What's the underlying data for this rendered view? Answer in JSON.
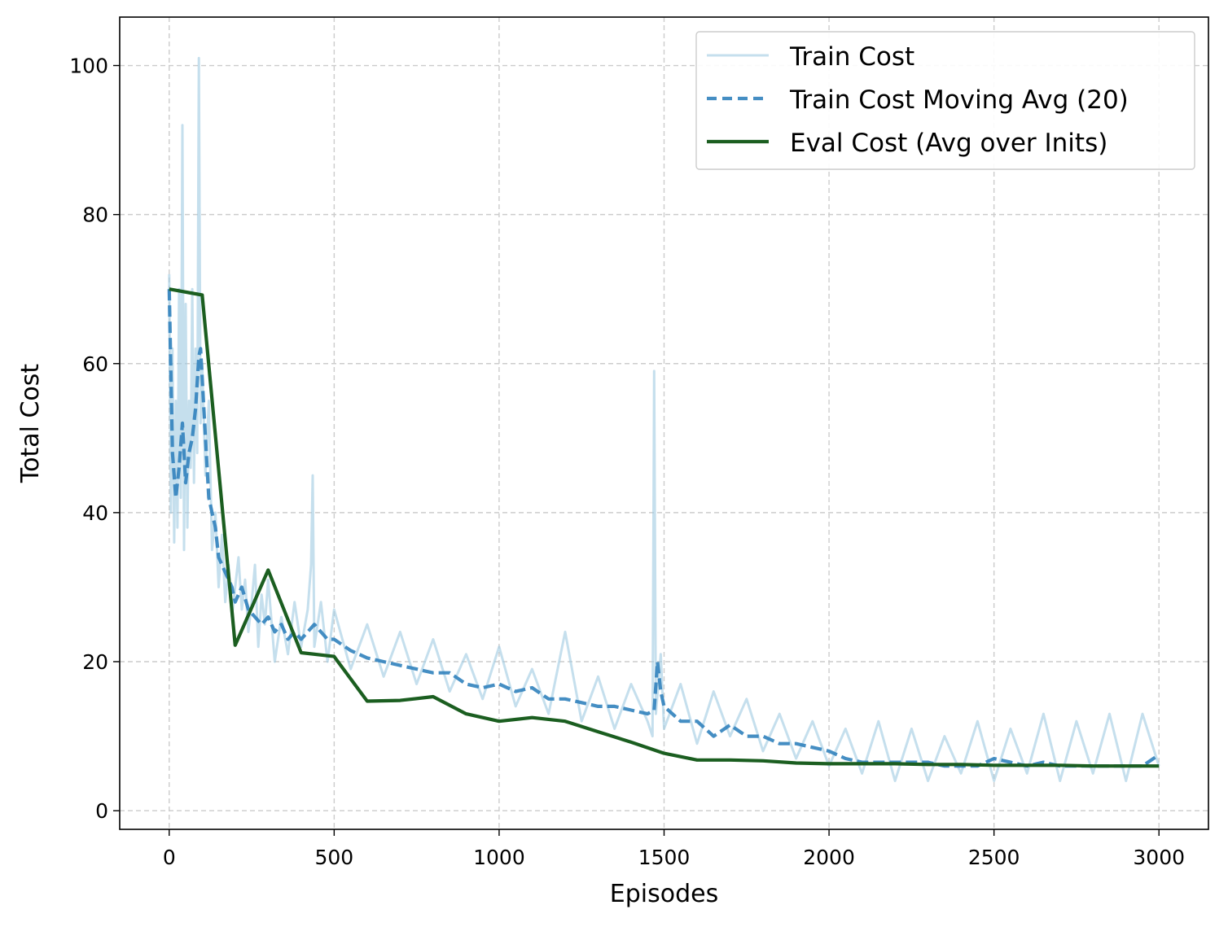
{
  "chart_data": {
    "type": "line",
    "title": "",
    "xlabel": "Episodes",
    "ylabel": "Total Cost",
    "xlim": [
      -150,
      3150
    ],
    "ylim": [
      -2.5,
      106.5
    ],
    "xticks": [
      0,
      500,
      1000,
      1500,
      2000,
      2500,
      3000
    ],
    "xtick_labels": [
      "0",
      "500",
      "1000",
      "1500",
      "2000",
      "2500",
      "3000"
    ],
    "yticks": [
      0,
      20,
      40,
      60,
      80,
      100
    ],
    "ytick_labels": [
      "0",
      "20",
      "40",
      "60",
      "80",
      "100"
    ],
    "grid": true,
    "grid_style": "dashed",
    "legend_position": "top-right",
    "series": [
      {
        "name": "Train Cost",
        "style": "solid-light",
        "color": "#9ecae1",
        "x": [
          0,
          5,
          10,
          15,
          20,
          25,
          30,
          35,
          40,
          45,
          50,
          55,
          60,
          65,
          70,
          75,
          80,
          85,
          90,
          95,
          100,
          110,
          120,
          130,
          140,
          150,
          160,
          170,
          180,
          190,
          200,
          210,
          220,
          230,
          240,
          250,
          260,
          270,
          280,
          290,
          300,
          320,
          340,
          360,
          380,
          400,
          420,
          430,
          435,
          440,
          460,
          480,
          500,
          550,
          600,
          650,
          700,
          750,
          800,
          850,
          900,
          950,
          1000,
          1050,
          1100,
          1150,
          1200,
          1250,
          1300,
          1350,
          1400,
          1450,
          1465,
          1470,
          1475,
          1490,
          1500,
          1550,
          1600,
          1650,
          1700,
          1750,
          1800,
          1850,
          1900,
          1950,
          2000,
          2050,
          2100,
          2150,
          2200,
          2250,
          2300,
          2350,
          2400,
          2450,
          2500,
          2550,
          2600,
          2650,
          2700,
          2750,
          2800,
          2850,
          2900,
          2950,
          3000
        ],
        "values": [
          72,
          40,
          62,
          36,
          55,
          38,
          70,
          42,
          92,
          35,
          68,
          38,
          55,
          46,
          70,
          44,
          62,
          48,
          101,
          52,
          60,
          45,
          55,
          35,
          40,
          30,
          37,
          28,
          33,
          26,
          30,
          34,
          27,
          31,
          24,
          28,
          33,
          22,
          29,
          25,
          31,
          20,
          26,
          21,
          28,
          22,
          27,
          33,
          45,
          22,
          28,
          20,
          27,
          19,
          25,
          18,
          24,
          17,
          23,
          16,
          21,
          15,
          22,
          14,
          19,
          13,
          24,
          12,
          18,
          11,
          17,
          12,
          10,
          59,
          13,
          21,
          11,
          17,
          9,
          16,
          10,
          15,
          8,
          13,
          7,
          12,
          6,
          11,
          5,
          12,
          4,
          11,
          4,
          10,
          5,
          12,
          4,
          11,
          5,
          13,
          4,
          12,
          5,
          13,
          4,
          13,
          6
        ]
      },
      {
        "name": "Train Cost Moving Avg (20)",
        "style": "dashed",
        "color": "#3182bd",
        "x": [
          0,
          10,
          20,
          30,
          40,
          50,
          60,
          70,
          80,
          90,
          95,
          100,
          110,
          120,
          130,
          140,
          150,
          160,
          170,
          180,
          190,
          200,
          220,
          240,
          260,
          280,
          300,
          320,
          340,
          360,
          380,
          400,
          420,
          440,
          460,
          480,
          500,
          550,
          600,
          650,
          700,
          750,
          800,
          850,
          900,
          950,
          1000,
          1050,
          1100,
          1150,
          1200,
          1250,
          1300,
          1350,
          1400,
          1450,
          1470,
          1480,
          1490,
          1500,
          1550,
          1600,
          1650,
          1700,
          1750,
          1800,
          1850,
          1900,
          1950,
          2000,
          2050,
          2100,
          2150,
          2200,
          2250,
          2300,
          2350,
          2400,
          2450,
          2500,
          2550,
          2600,
          2650,
          2700,
          2750,
          2800,
          2850,
          2900,
          2950,
          3000
        ],
        "values": [
          70,
          48,
          42,
          46,
          52,
          44,
          48,
          50,
          54,
          61,
          62,
          58,
          50,
          42,
          40,
          38,
          34,
          33,
          32,
          31,
          30,
          28,
          30,
          27,
          26,
          25,
          26,
          24,
          25,
          23,
          24,
          23,
          24,
          25,
          24,
          23,
          23,
          21.5,
          20.5,
          20,
          19.5,
          19,
          18.5,
          18.5,
          17,
          16.5,
          17,
          16,
          16.5,
          15,
          15,
          14.5,
          14,
          14,
          13.5,
          13,
          13.5,
          20,
          16,
          14,
          12,
          12,
          10,
          11.5,
          10,
          10,
          9,
          9,
          8.5,
          8,
          7,
          6.5,
          6.5,
          6.5,
          6.5,
          6.5,
          6,
          6,
          6,
          7,
          6.5,
          6,
          6.5,
          6,
          6,
          6,
          6,
          6,
          6,
          7.5
        ]
      },
      {
        "name": "Eval Cost (Avg over Inits)",
        "style": "solid",
        "color": "#1b5e20",
        "x": [
          0,
          100,
          200,
          300,
          400,
          500,
          600,
          700,
          800,
          900,
          1000,
          1100,
          1200,
          1300,
          1400,
          1500,
          1600,
          1700,
          1800,
          1900,
          2000,
          2100,
          2200,
          2300,
          2400,
          2500,
          2600,
          2700,
          2800,
          2900,
          3000
        ],
        "values": [
          70,
          69.2,
          22.2,
          32.3,
          21.2,
          20.7,
          14.7,
          14.8,
          15.3,
          13.0,
          12.0,
          12.5,
          12.0,
          10.6,
          9.2,
          7.7,
          6.8,
          6.8,
          6.7,
          6.4,
          6.3,
          6.3,
          6.3,
          6.2,
          6.2,
          6.1,
          6.1,
          6.1,
          6.0,
          6.0,
          6.0
        ]
      }
    ]
  }
}
